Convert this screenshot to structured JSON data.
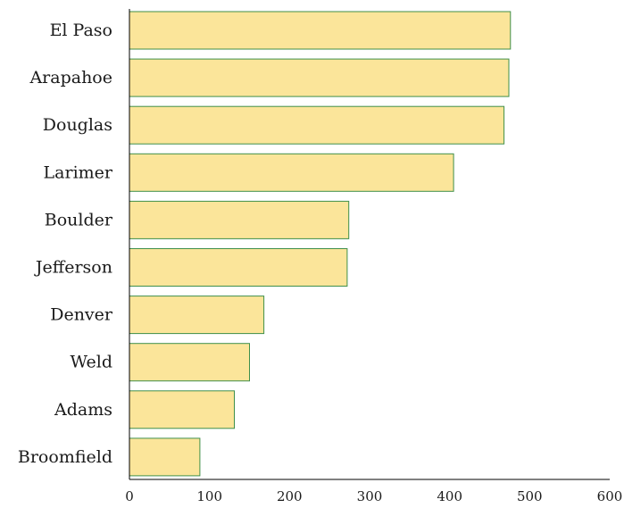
{
  "chart_data": {
    "type": "bar",
    "orientation": "horizontal",
    "categories": [
      "El Paso",
      "Arapahoe",
      "Douglas",
      "Larimer",
      "Boulder",
      "Jefferson",
      "Denver",
      "Weld",
      "Adams",
      "Broomfield"
    ],
    "values": [
      476,
      474,
      468,
      405,
      274,
      272,
      168,
      150,
      131,
      88
    ],
    "xlim": [
      0,
      600
    ],
    "xticks": [
      0,
      100,
      200,
      300,
      400,
      500,
      600
    ],
    "grid": false,
    "colors": {
      "bar_fill": "#fbe59a",
      "bar_stroke": "#3f8f4a"
    }
  }
}
